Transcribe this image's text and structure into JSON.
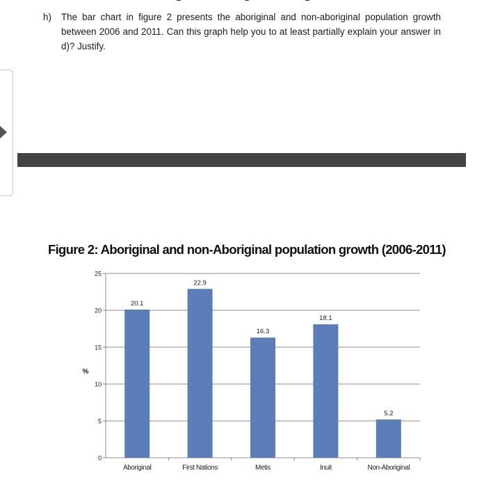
{
  "question": {
    "number": "h)",
    "text": "The bar chart in figure 2 presents the aboriginal and non-aboriginal population growth between 2006 and 2011. Can this graph help you to at least partially explain your answer in d)? Justify."
  },
  "figure": {
    "title": "Figure 2: Aboriginal and non-Aboriginal population growth (2006-2011)"
  },
  "colors": {
    "bar": "#5b7db8",
    "grid": "#8c8c8c",
    "dark_band": "#444444"
  },
  "chart_data": {
    "type": "bar",
    "title": "Figure 2: Aboriginal and non-Aboriginal population growth (2006-2011)",
    "categories": [
      "Aboriginal",
      "First Nations",
      "Metis",
      "Inuit",
      "Non-Aboriginal"
    ],
    "values": [
      20.1,
      22.9,
      16.3,
      18.1,
      5.2
    ],
    "value_labels": [
      "20.1",
      "22.9",
      "16.3",
      "18.1",
      "5.2"
    ],
    "yticks": [
      "0",
      "5",
      "10",
      "15",
      "20",
      "25"
    ],
    "ylabel": "%",
    "xlabel": "",
    "ylim": [
      0,
      25
    ],
    "grid": true,
    "legend": "none"
  }
}
